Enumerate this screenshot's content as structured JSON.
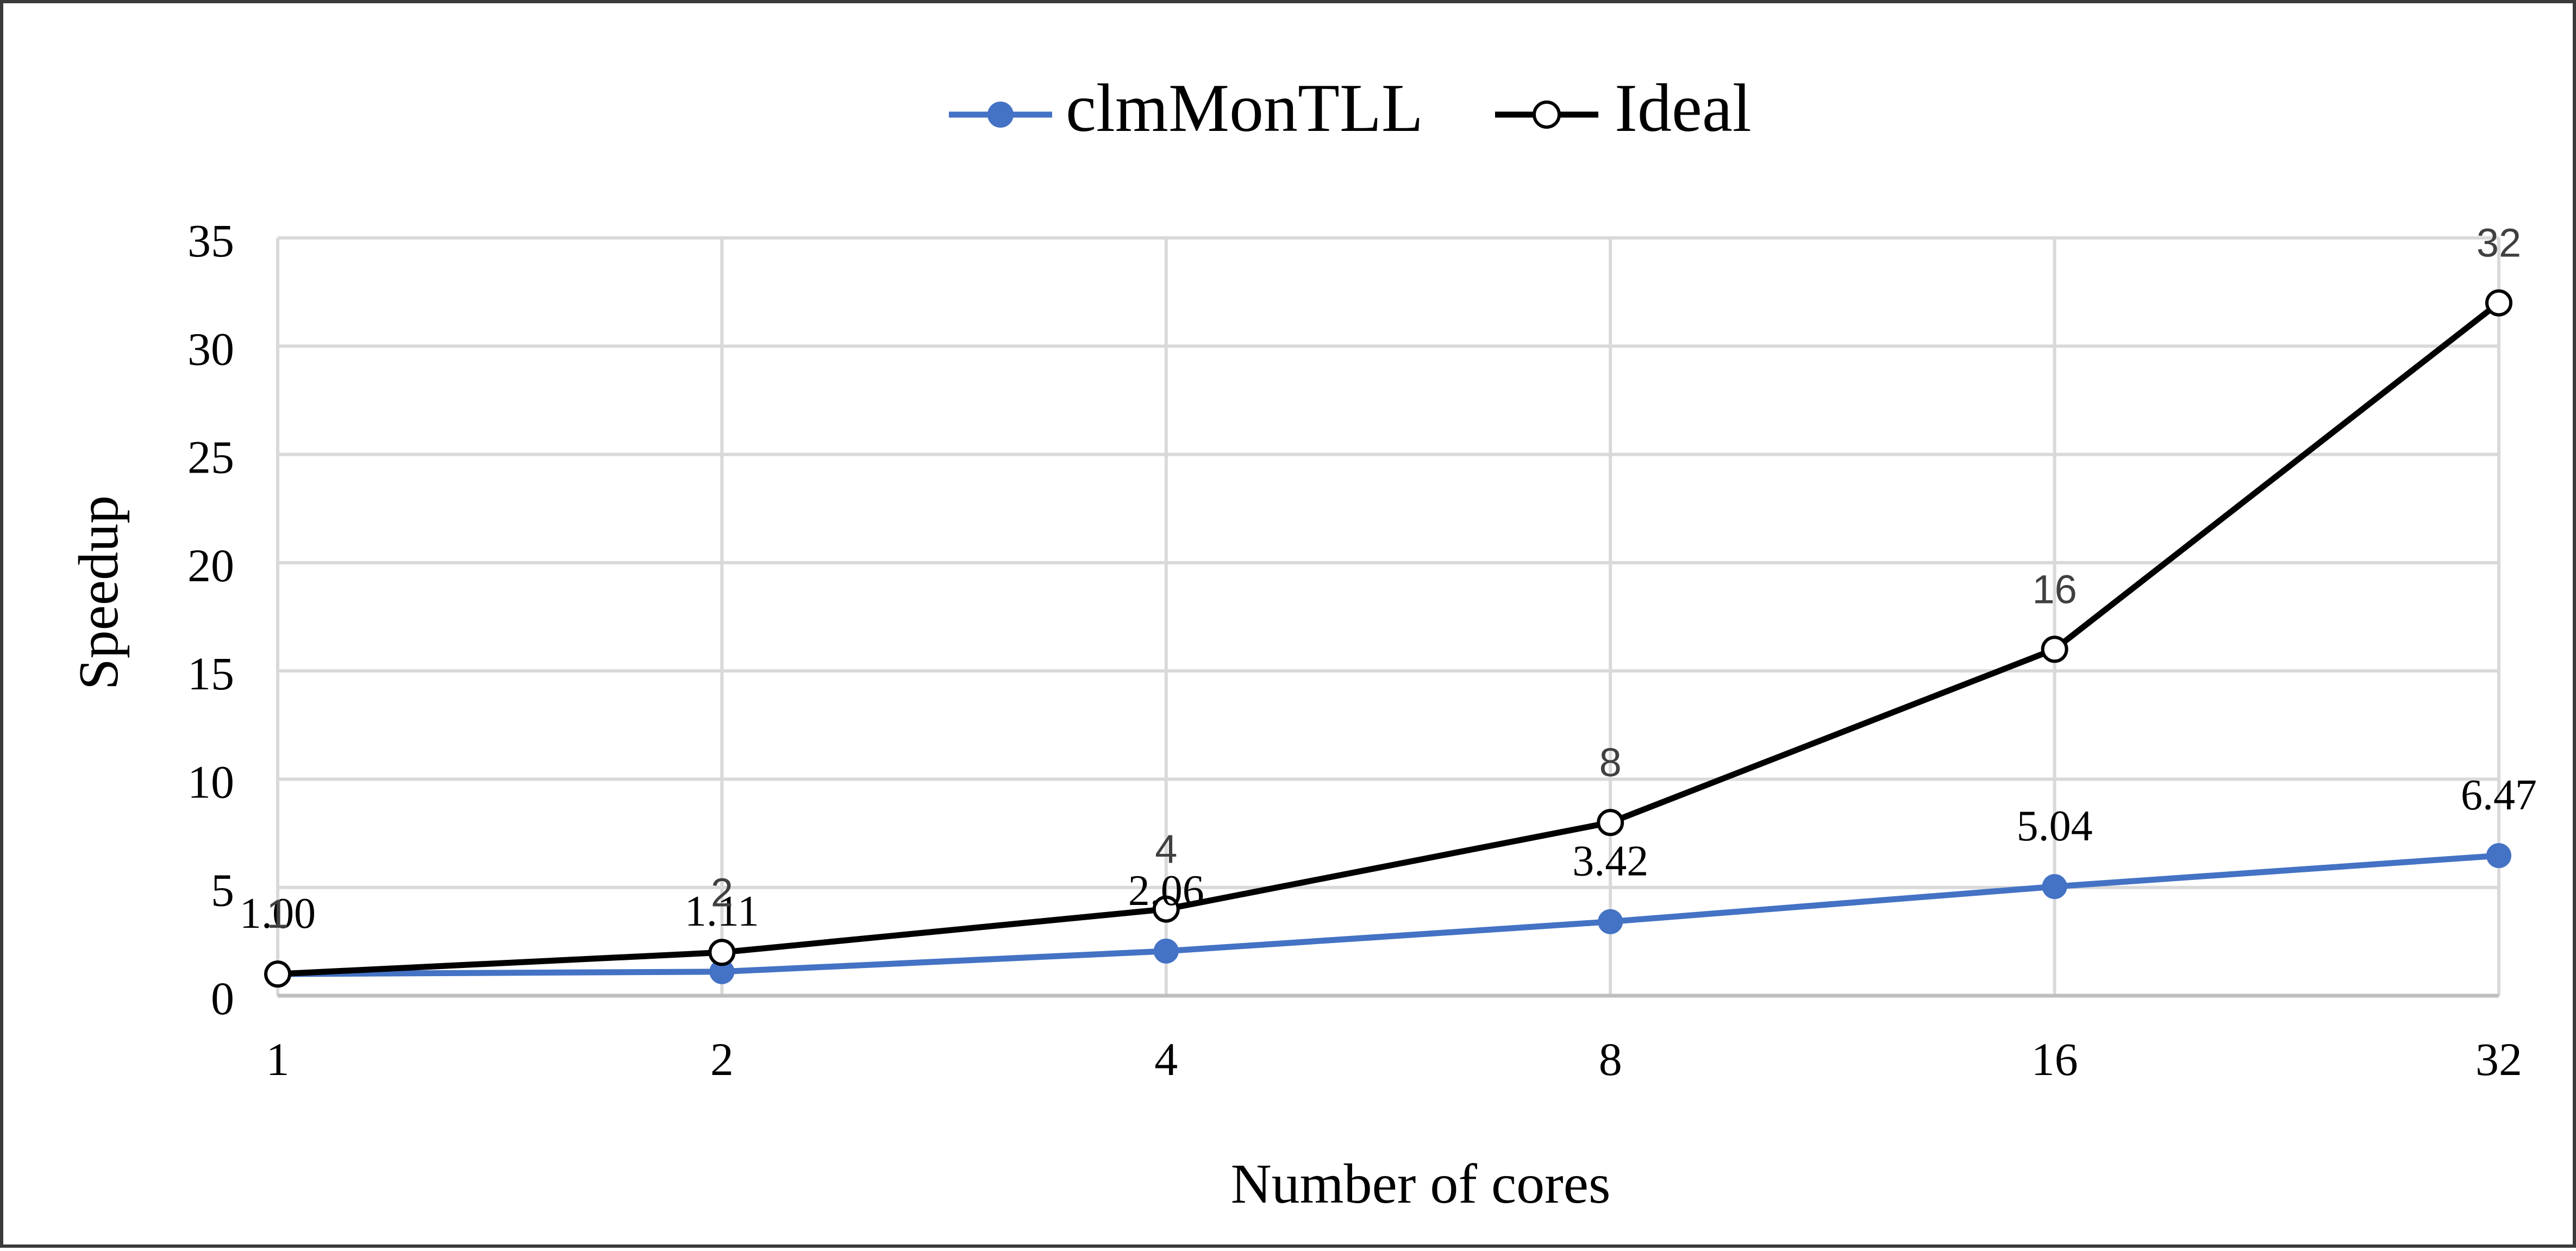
{
  "chart_data": {
    "type": "line",
    "categories": [
      "1",
      "2",
      "4",
      "8",
      "16",
      "32"
    ],
    "xlabel": "Number of cores",
    "ylabel": "Speedup",
    "ylim": [
      0,
      35
    ],
    "yticks": [
      "0",
      "5",
      "10",
      "15",
      "20",
      "25",
      "30",
      "35"
    ],
    "grid": true,
    "legend_position": "top",
    "series": [
      {
        "name": "clmMonTLL",
        "values": [
          1.0,
          1.11,
          2.06,
          3.42,
          5.04,
          6.47
        ],
        "labels": [
          "1.00",
          "1.11",
          "2.06",
          "3.42",
          "5.04",
          "6.47"
        ],
        "color": "#4472C4",
        "marker": "filled-circle"
      },
      {
        "name": "Ideal",
        "values": [
          1,
          2,
          4,
          8,
          16,
          32
        ],
        "labels": [
          "1",
          "2",
          "4",
          "8",
          "16",
          "32"
        ],
        "color": "#000000",
        "marker": "open-circle"
      }
    ],
    "colors": {
      "grid": "#d9d9d9",
      "axis": "#bfbfbf",
      "text": "#000000",
      "label_text": "#404040"
    }
  }
}
